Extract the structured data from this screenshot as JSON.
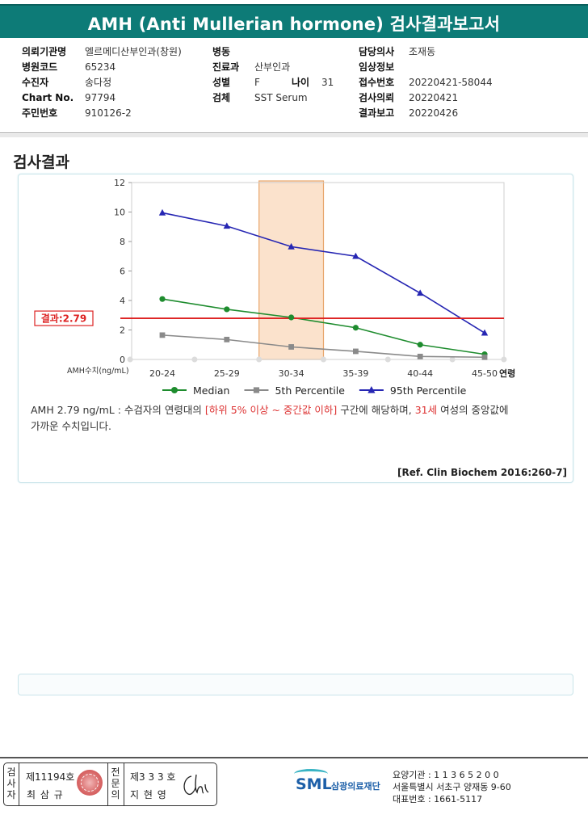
{
  "report": {
    "title": "AMH (Anti Mullerian hormone) 검사결과보고서"
  },
  "info": {
    "col1": [
      {
        "label": "의뢰기관명",
        "value": "엘르메디산부인과(창원)"
      },
      {
        "label": "병원코드",
        "value": "65234"
      },
      {
        "label": "수진자",
        "value": "송다정"
      },
      {
        "label": "Chart No.",
        "value": "97794"
      },
      {
        "label": "주민번호",
        "value": "910126-2"
      }
    ],
    "col2": [
      {
        "label": "병동",
        "value": ""
      },
      {
        "label": "진료과",
        "value": "산부인과"
      },
      {
        "label": "성별",
        "value": "F"
      },
      {
        "label": "검체",
        "value": "SST Serum"
      }
    ],
    "age_label": "나이",
    "age_value": "31",
    "col3": [
      {
        "label": "담당의사",
        "value": "조재동"
      },
      {
        "label": "임상정보",
        "value": ""
      },
      {
        "label": "접수번호",
        "value": "20220421-58044"
      },
      {
        "label": "검사의뢰",
        "value": "20220421"
      },
      {
        "label": "결과보고",
        "value": "20220426"
      }
    ]
  },
  "section_title": "검사결과",
  "chart_data": {
    "type": "line",
    "categories": [
      "20-24",
      "25-29",
      "30-34",
      "35-39",
      "40-44",
      "45-50"
    ],
    "x_axis_suffix": "연령",
    "y_axis_label": "AMH수치(ng/mL)",
    "ylim": [
      0,
      12
    ],
    "yticks": [
      0,
      2,
      4,
      6,
      8,
      10,
      12
    ],
    "grid": false,
    "highlight_category": "30-34",
    "result": {
      "label": "결과:2.79",
      "value": 2.79
    },
    "series": [
      {
        "name": "Median",
        "color": "#1e8c2e",
        "marker": "circle",
        "values": [
          4.1,
          3.4,
          2.85,
          2.15,
          1.0,
          0.35
        ]
      },
      {
        "name": "5th Percentile",
        "color": "#8a8a8a",
        "marker": "square",
        "values": [
          1.65,
          1.35,
          0.85,
          0.55,
          0.2,
          0.15
        ]
      },
      {
        "name": "95th Percentile",
        "color": "#2626b3",
        "marker": "triangle",
        "values": [
          9.95,
          9.05,
          7.65,
          7.0,
          4.5,
          1.8
        ]
      }
    ],
    "legend_position": "bottom"
  },
  "comment": {
    "part1": "AMH  2.79 ng/mL : 수검자의 연령대의 ",
    "highlight1": "[하위 5% 이상 ~ 중간값 이하]",
    "part2": " 구간에 해당하며, ",
    "highlight2": "31세",
    "part3": " 여성의 중앙값에",
    "line2": "가까운 수치입니다."
  },
  "reference": "[Ref. Clin Biochem 2016:260-7]",
  "signatures": {
    "left_vertical": [
      "검",
      "사",
      "자"
    ],
    "left_no": "제11194호",
    "left_name": "최 삼 규",
    "right_vertical": [
      "전",
      "문",
      "의"
    ],
    "right_no": "제3 3 3 호",
    "right_name": "지 현 영"
  },
  "footer": {
    "logo_text": "SML",
    "org_name": "삼광의료재단",
    "line1": "요양기관 : 1 1 3 6 5 2 0 0",
    "line2": "서울특별시 서초구 양재동 9-60",
    "line3": "대표번호 : 1661-5117"
  }
}
